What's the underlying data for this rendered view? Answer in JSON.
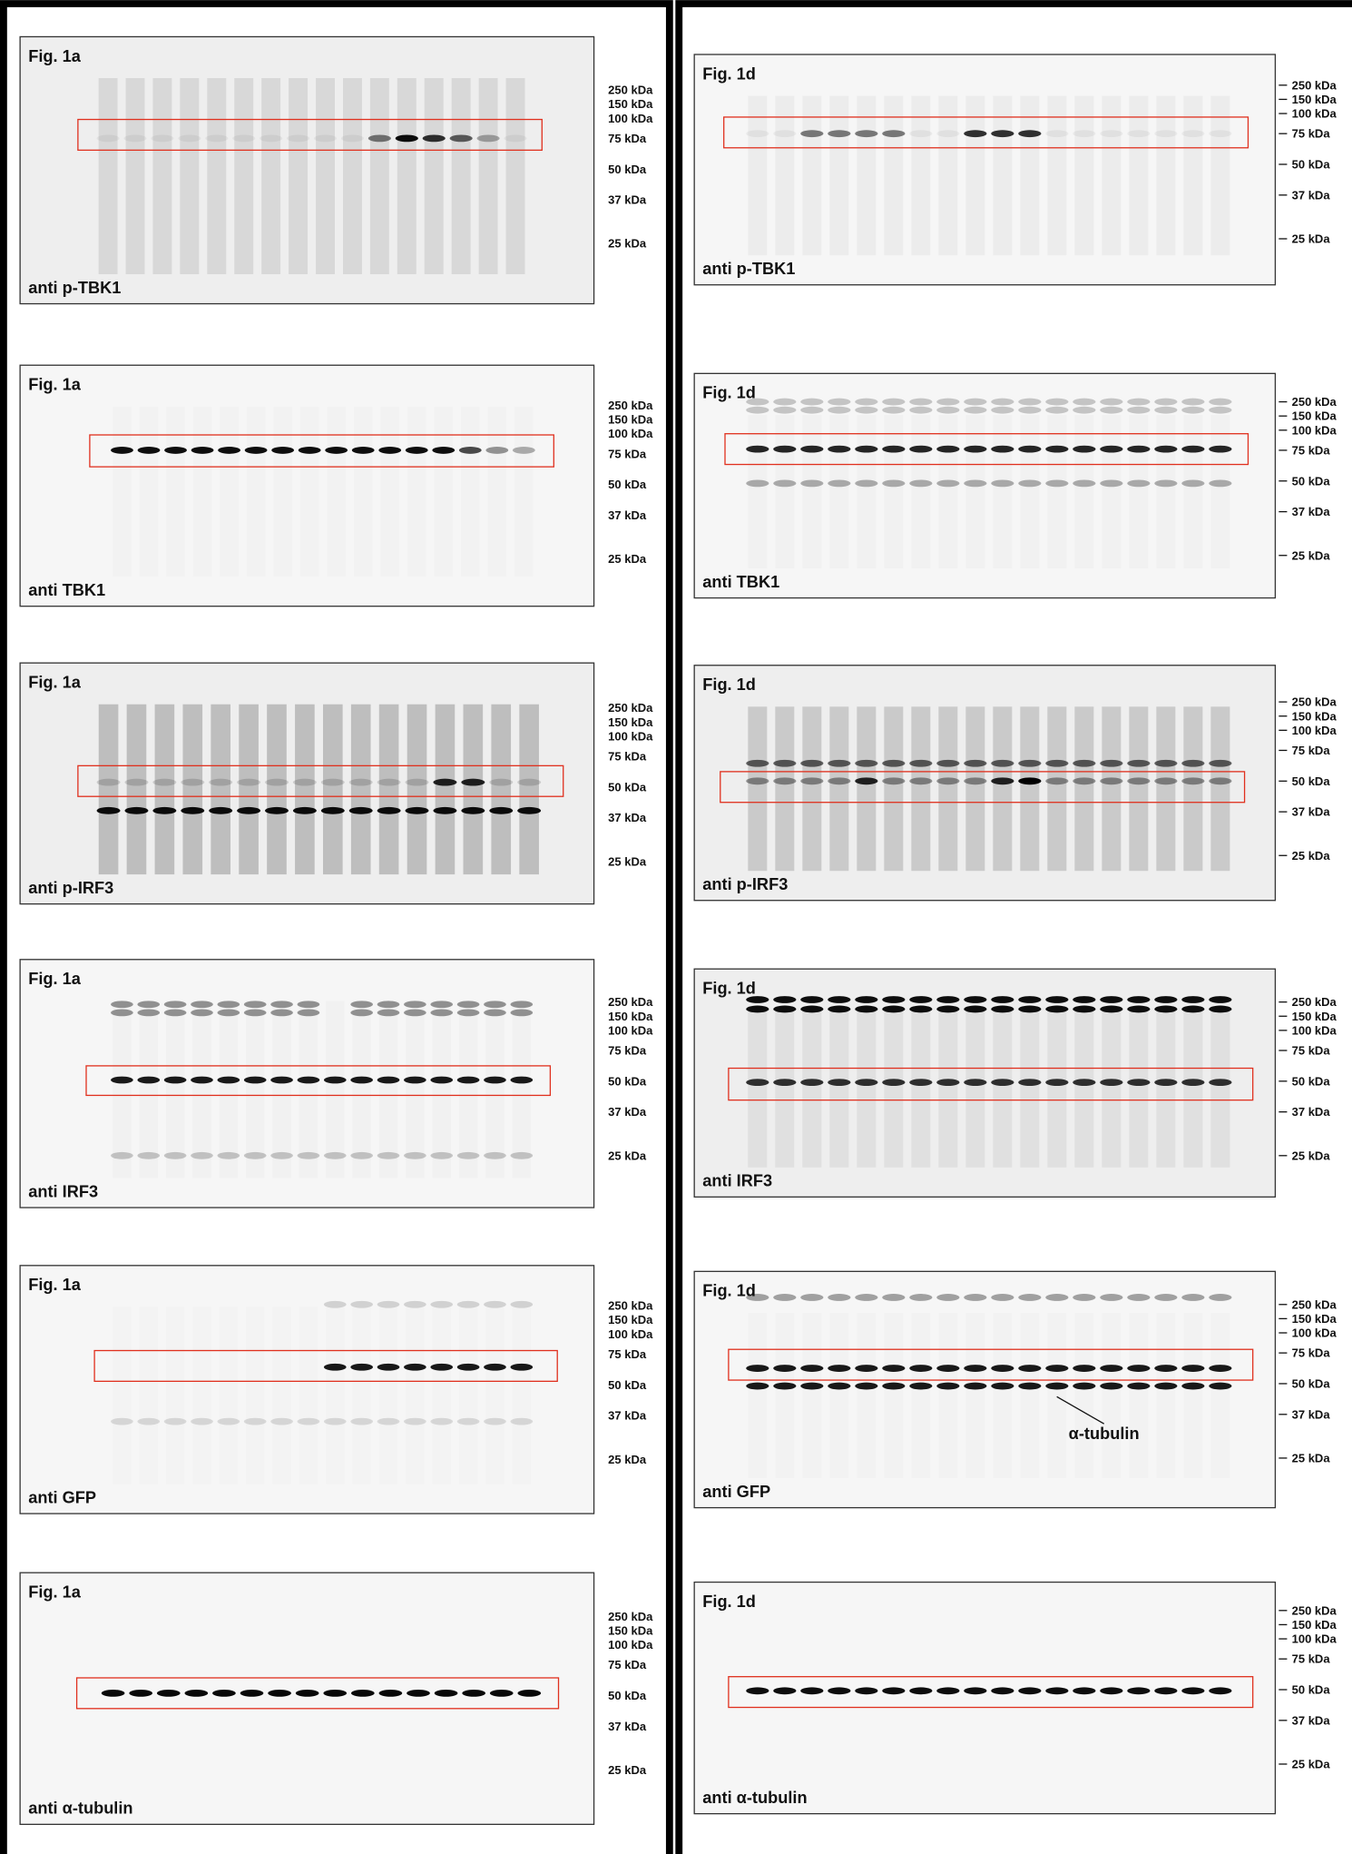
{
  "markers": [
    "250 kDa",
    "150 kDa",
    "100 kDa",
    "75 kDa",
    "50 kDa",
    "37 kDa",
    "25 kDa"
  ],
  "left": {
    "panels": [
      {
        "figure": "Fig. 1a",
        "antibody": "anti p-TBK1"
      },
      {
        "figure": "Fig. 1a",
        "antibody": "anti TBK1"
      },
      {
        "figure": "Fig. 1a",
        "antibody": "anti p-IRF3"
      },
      {
        "figure": "Fig. 1a",
        "antibody": "anti IRF3"
      },
      {
        "figure": "Fig. 1a",
        "antibody": "anti GFP"
      },
      {
        "figure": "Fig. 1a",
        "antibody": "anti α-tubulin"
      }
    ]
  },
  "right": {
    "panels": [
      {
        "figure": "Fig. 1d",
        "antibody": "anti p-TBK1"
      },
      {
        "figure": "Fig. 1d",
        "antibody": "anti TBK1"
      },
      {
        "figure": "Fig. 1d",
        "antibody": "anti p-IRF3"
      },
      {
        "figure": "Fig. 1d",
        "antibody": "anti IRF3"
      },
      {
        "figure": "Fig. 1d",
        "antibody": "anti GFP",
        "annotation": "α-tubulin"
      },
      {
        "figure": "Fig. 1d",
        "antibody": "anti α-tubulin"
      }
    ]
  }
}
